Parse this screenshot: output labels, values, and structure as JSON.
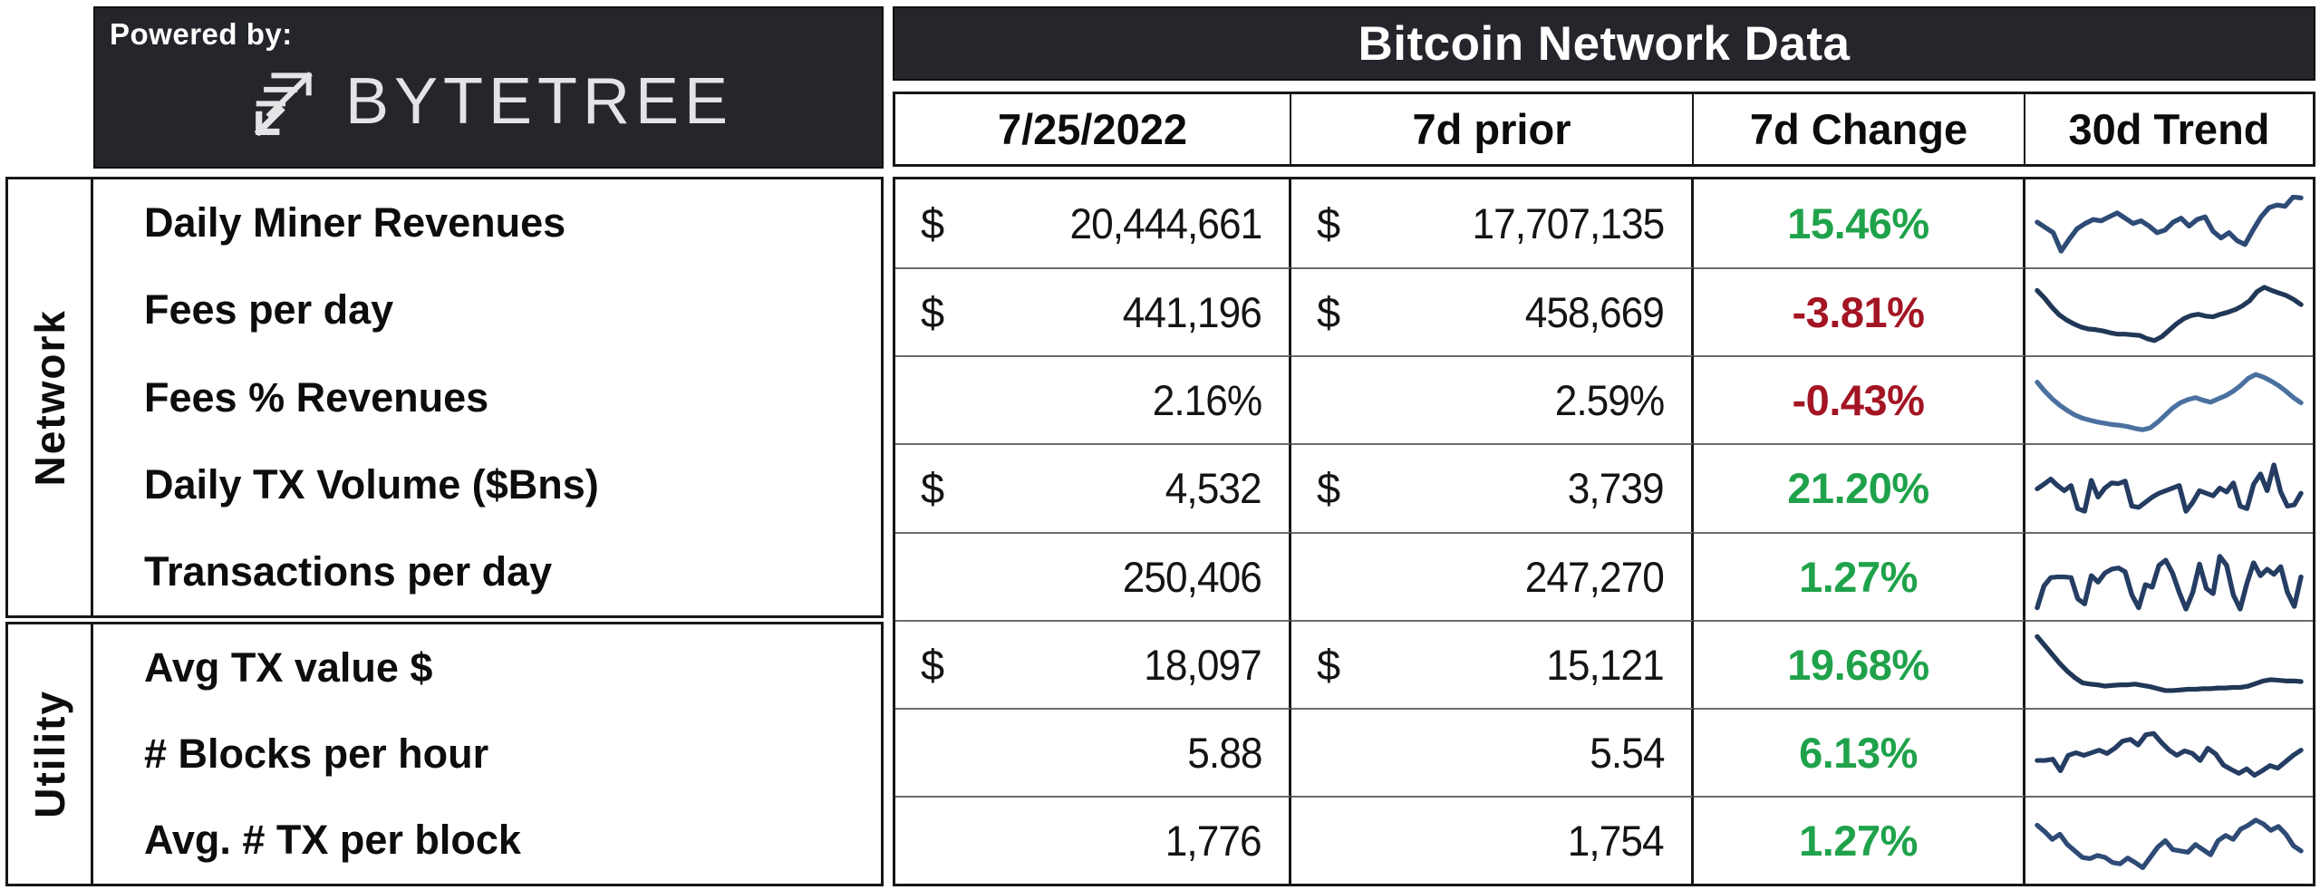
{
  "brand": {
    "powered_by_label": "Powered by:",
    "name": "BYTETREE",
    "logo_icon": "stacked-arrow-up-right-icon"
  },
  "colors": {
    "dark_bg": "#24262b",
    "up_green": "#1fa24a",
    "down_red": "#a31523",
    "border_black": "#171717",
    "grid_line_gray": "#6b6b6b",
    "logo_text": "#e4e4e6"
  },
  "chart_data": {
    "type": "table",
    "title": "Bitcoin Network Data",
    "columns": [
      "7/25/2022",
      "7d prior",
      "7d Change",
      "30d Trend"
    ],
    "sparkline_note": "30d Trend values are normalized 0-1 line shapes read from the sparklines",
    "row_groups": [
      {
        "group": "Network",
        "rows": [
          {
            "metric": "Daily Miner Revenues",
            "currency": "$",
            "current": "20,444,661",
            "prior": "17,707,135",
            "change_label": "15.46%",
            "change_pct": 15.46,
            "direction": "up",
            "trend_color": "#2e4b76",
            "trend_30d_normalized": [
              0.58,
              0.5,
              0.42,
              0.14,
              0.32,
              0.48,
              0.56,
              0.62,
              0.6,
              0.66,
              0.72,
              0.64,
              0.56,
              0.6,
              0.52,
              0.42,
              0.46,
              0.58,
              0.64,
              0.52,
              0.62,
              0.66,
              0.44,
              0.34,
              0.42,
              0.3,
              0.24,
              0.46,
              0.66,
              0.8,
              0.84,
              0.82,
              0.96,
              0.95
            ]
          },
          {
            "metric": "Fees per day",
            "currency": "$",
            "current": "441,196",
            "prior": "458,669",
            "change_label": "-3.81%",
            "change_pct": -3.81,
            "direction": "down",
            "trend_color": "#213757",
            "trend_30d_normalized": [
              0.9,
              0.78,
              0.64,
              0.52,
              0.44,
              0.38,
              0.33,
              0.3,
              0.29,
              0.27,
              0.24,
              0.22,
              0.22,
              0.21,
              0.2,
              0.15,
              0.12,
              0.18,
              0.28,
              0.38,
              0.46,
              0.51,
              0.53,
              0.5,
              0.49,
              0.53,
              0.56,
              0.6,
              0.66,
              0.74,
              0.88,
              0.95,
              0.9,
              0.86,
              0.82,
              0.76,
              0.68
            ]
          },
          {
            "metric": "Fees % Revenues",
            "currency": "",
            "current": "2.16%",
            "prior": "2.59%",
            "change_label": "-0.43%",
            "change_pct": -0.43,
            "direction": "down",
            "trend_color": "#4a719f",
            "trend_30d_normalized": [
              0.84,
              0.7,
              0.58,
              0.48,
              0.4,
              0.33,
              0.28,
              0.25,
              0.22,
              0.2,
              0.18,
              0.17,
              0.15,
              0.12,
              0.1,
              0.13,
              0.22,
              0.33,
              0.44,
              0.52,
              0.57,
              0.6,
              0.56,
              0.53,
              0.58,
              0.63,
              0.7,
              0.79,
              0.9,
              0.96,
              0.92,
              0.86,
              0.79,
              0.7,
              0.6,
              0.52
            ]
          },
          {
            "metric": "Daily TX Volume ($Bns)",
            "currency": "$",
            "current": "4,532",
            "prior": "3,739",
            "change_label": "21.20%",
            "change_pct": 21.2,
            "direction": "up",
            "trend_color": "#243c61",
            "trend_30d_normalized": [
              0.55,
              0.62,
              0.7,
              0.6,
              0.52,
              0.6,
              0.24,
              0.2,
              0.68,
              0.42,
              0.56,
              0.64,
              0.63,
              0.67,
              0.28,
              0.26,
              0.34,
              0.42,
              0.48,
              0.52,
              0.56,
              0.6,
              0.2,
              0.34,
              0.52,
              0.48,
              0.44,
              0.56,
              0.5,
              0.64,
              0.28,
              0.24,
              0.62,
              0.78,
              0.52,
              0.92,
              0.5,
              0.28,
              0.3,
              0.48
            ]
          },
          {
            "metric": "Transactions per day",
            "currency": "",
            "current": "250,406",
            "prior": "247,270",
            "change_label": "1.27%",
            "change_pct": 1.27,
            "direction": "up",
            "trend_color": "#253d63",
            "trend_30d_normalized": [
              0.08,
              0.42,
              0.55,
              0.56,
              0.56,
              0.55,
              0.22,
              0.14,
              0.58,
              0.48,
              0.62,
              0.68,
              0.7,
              0.64,
              0.28,
              0.08,
              0.44,
              0.4,
              0.74,
              0.82,
              0.62,
              0.32,
              0.06,
              0.32,
              0.76,
              0.38,
              0.3,
              0.88,
              0.74,
              0.28,
              0.06,
              0.46,
              0.78,
              0.58,
              0.68,
              0.6,
              0.72,
              0.32,
              0.1,
              0.56
            ]
          }
        ]
      },
      {
        "group": "Utility",
        "rows": [
          {
            "metric": "Avg TX value $",
            "currency": "$",
            "current": "18,097",
            "prior": "15,121",
            "change_label": "19.68%",
            "change_pct": 19.68,
            "direction": "up",
            "trend_color": "#213757",
            "trend_30d_normalized": [
              1.0,
              0.86,
              0.72,
              0.58,
              0.46,
              0.36,
              0.28,
              0.26,
              0.25,
              0.23,
              0.24,
              0.25,
              0.25,
              0.26,
              0.24,
              0.22,
              0.19,
              0.16,
              0.16,
              0.17,
              0.18,
              0.18,
              0.19,
              0.19,
              0.2,
              0.2,
              0.21,
              0.21,
              0.23,
              0.27,
              0.31,
              0.33,
              0.32,
              0.31,
              0.31,
              0.3
            ]
          },
          {
            "metric": "# Blocks per hour",
            "currency": "",
            "current": "5.88",
            "prior": "5.54",
            "change_label": "6.13%",
            "change_pct": 6.13,
            "direction": "up",
            "trend_color": "#253d63",
            "trend_30d_normalized": [
              0.44,
              0.44,
              0.46,
              0.28,
              0.52,
              0.56,
              0.52,
              0.56,
              0.6,
              0.55,
              0.63,
              0.74,
              0.77,
              0.68,
              0.84,
              0.86,
              0.72,
              0.6,
              0.52,
              0.59,
              0.55,
              0.44,
              0.63,
              0.54,
              0.37,
              0.3,
              0.24,
              0.31,
              0.21,
              0.28,
              0.36,
              0.32,
              0.42,
              0.52,
              0.6
            ]
          },
          {
            "metric": "Avg. # TX per block",
            "currency": "",
            "current": "1,776",
            "prior": "1,754",
            "change_label": "1.27%",
            "change_pct": 1.27,
            "direction": "up",
            "trend_color": "#2e4b76",
            "trend_30d_normalized": [
              0.8,
              0.7,
              0.58,
              0.66,
              0.5,
              0.4,
              0.3,
              0.28,
              0.33,
              0.3,
              0.22,
              0.2,
              0.29,
              0.22,
              0.14,
              0.3,
              0.46,
              0.56,
              0.42,
              0.4,
              0.38,
              0.5,
              0.42,
              0.34,
              0.56,
              0.64,
              0.58,
              0.74,
              0.8,
              0.88,
              0.82,
              0.72,
              0.78,
              0.66,
              0.48,
              0.4
            ]
          }
        ]
      }
    ]
  }
}
